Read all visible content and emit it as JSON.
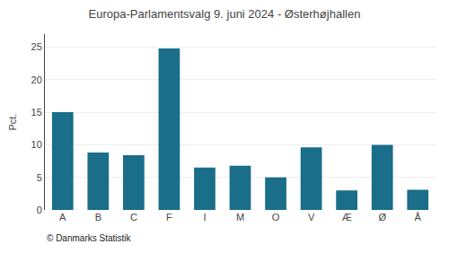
{
  "chart_data": {
    "type": "bar",
    "title": "Europa-Parlamentsvalg 9. juni 2024 - Østerhøjhallen",
    "categories": [
      "A",
      "B",
      "C",
      "F",
      "I",
      "M",
      "O",
      "V",
      "Æ",
      "Ø",
      "Å"
    ],
    "values": [
      15.0,
      8.8,
      8.4,
      24.8,
      6.5,
      6.8,
      5.0,
      9.6,
      3.0,
      10.0,
      3.1
    ],
    "color": "#1a6e8a",
    "ylabel": "Pct.",
    "ylim": [
      0,
      27
    ],
    "yticks": [
      0,
      5,
      10,
      15,
      20,
      25
    ],
    "grid": true,
    "annotations": [
      "© Danmarks Statistik"
    ]
  }
}
